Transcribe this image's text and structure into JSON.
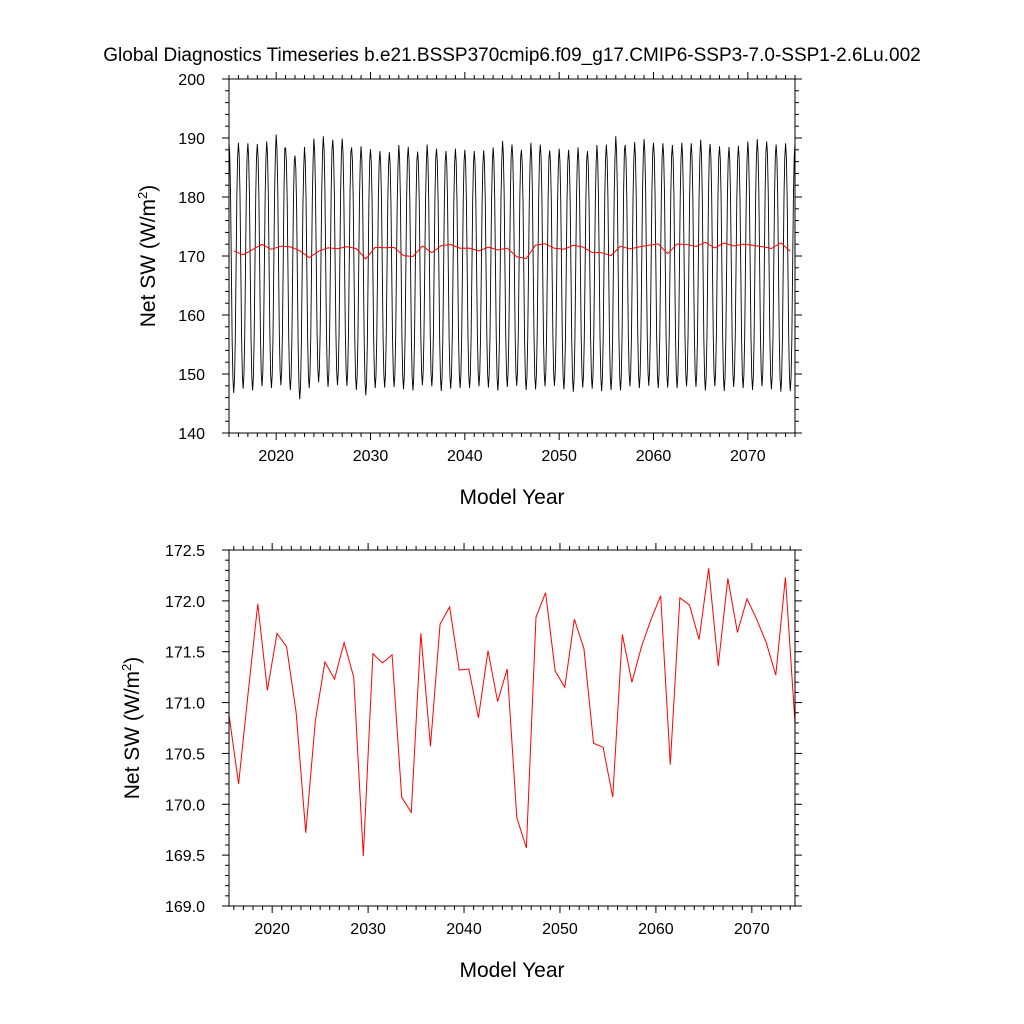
{
  "page": {
    "title": "Global Diagnostics Timeseries b.e21.BSSP370cmip6.f09_g17.CMIP6-SSP3-7.0-SSP1-2.6Lu.002"
  },
  "colors": {
    "monthly": "#000000",
    "annual": "#ff0000",
    "axis": "#000000"
  },
  "chart_data": [
    {
      "type": "line",
      "title": "",
      "xlabel": "Model Year",
      "ylabel": "Net SW (W/m",
      "ylabel_sup": "2",
      "ylabel_end": ")",
      "xlim": [
        2015,
        2075
      ],
      "ylim": [
        140,
        200
      ],
      "xticks": [
        2020,
        2030,
        2040,
        2050,
        2060,
        2070
      ],
      "xtick_labels": [
        "2020",
        "2030",
        "2040",
        "2050",
        "2060",
        "2070"
      ],
      "yticks": [
        140,
        150,
        160,
        170,
        180,
        190,
        200
      ],
      "ytick_labels": [
        "140",
        "150",
        "160",
        "170",
        "180",
        "190",
        "200"
      ],
      "series": [
        {
          "name": "monthly",
          "color": "#000000",
          "x_start": 2015.0,
          "x_step": 0.0833333,
          "seasonal_max": [
            189.2,
            189.2,
            189.1,
            189.0,
            189.4,
            190.6,
            188.3,
            187.0,
            188.5,
            189.9,
            190.3,
            189.7,
            189.9,
            188.4,
            188.6,
            188.1,
            187.8,
            187.6,
            188.8,
            188.5,
            187.7,
            188.9,
            188.2,
            187.8,
            188.2,
            188.0,
            187.8,
            187.9,
            188.4,
            189.5,
            188.9,
            188.0,
            189.2,
            188.9,
            187.9,
            188.2,
            188.0,
            188.4,
            187.8,
            188.8,
            188.9,
            190.3,
            188.8,
            189.3,
            189.8,
            189.2,
            189.1,
            188.8,
            189.2,
            189.1,
            189.7,
            189.0,
            188.6,
            188.5,
            188.7,
            189.4,
            189.8,
            189.4,
            188.9,
            189.1
          ],
          "seasonal_min": [
            146.8,
            147.5,
            147.2,
            147.9,
            147.6,
            148.1,
            147.3,
            145.7,
            147.6,
            148.6,
            147.8,
            148.1,
            148.0,
            147.3,
            146.4,
            147.6,
            147.7,
            147.8,
            147.4,
            147.2,
            148.1,
            147.9,
            147.1,
            147.5,
            147.6,
            147.6,
            147.9,
            147.7,
            147.2,
            147.8,
            148.0,
            147.3,
            147.4,
            147.9,
            148.0,
            147.4,
            147.0,
            147.7,
            147.5,
            147.1,
            147.3,
            147.2,
            147.9,
            147.6,
            148.0,
            147.6,
            147.7,
            147.6,
            147.9,
            147.8,
            147.2,
            147.9,
            147.1,
            147.8,
            147.6,
            147.3,
            147.9,
            147.4,
            147.0,
            147.1
          ]
        },
        {
          "name": "annual",
          "color": "#ff0000",
          "x": [
            2015.5,
            2016.5,
            2017.5,
            2018.5,
            2019.5,
            2020.5,
            2021.5,
            2022.5,
            2023.5,
            2024.5,
            2025.5,
            2026.5,
            2027.5,
            2028.5,
            2029.5,
            2030.5,
            2031.5,
            2032.5,
            2033.5,
            2034.5,
            2035.5,
            2036.5,
            2037.5,
            2038.5,
            2039.5,
            2040.5,
            2041.5,
            2042.5,
            2043.5,
            2044.5,
            2045.5,
            2046.5,
            2047.5,
            2048.5,
            2049.5,
            2050.5,
            2051.5,
            2052.5,
            2053.5,
            2054.5,
            2055.5,
            2056.5,
            2057.5,
            2058.5,
            2059.5,
            2060.5,
            2061.5,
            2062.5,
            2063.5,
            2064.5,
            2065.5,
            2066.5,
            2067.5,
            2068.5,
            2069.5,
            2070.5,
            2071.5,
            2072.5,
            2073.5,
            2074.5
          ],
          "values": [
            170.88,
            170.2,
            171.1,
            171.97,
            171.12,
            171.68,
            171.55,
            170.9,
            169.72,
            170.82,
            171.4,
            171.23,
            171.59,
            171.25,
            169.49,
            171.48,
            171.39,
            171.47,
            170.07,
            169.92,
            171.68,
            170.57,
            171.77,
            171.94,
            171.32,
            171.33,
            170.85,
            171.51,
            171.01,
            171.33,
            169.87,
            169.57,
            171.84,
            172.08,
            171.31,
            171.15,
            171.82,
            171.53,
            170.6,
            170.56,
            170.07,
            171.67,
            171.2,
            171.55,
            171.82,
            172.05,
            170.39,
            172.03,
            171.96,
            171.62,
            172.32,
            171.36,
            172.22,
            171.69,
            172.02,
            171.82,
            171.59,
            171.27,
            172.23,
            170.8
          ]
        }
      ]
    },
    {
      "type": "line",
      "title": "",
      "xlabel": "Model Year",
      "ylabel": "Net SW (W/m",
      "ylabel_sup": "2",
      "ylabel_end": ")",
      "xlim": [
        2015.5,
        2074.5
      ],
      "ylim": [
        169.0,
        172.5
      ],
      "xticks": [
        2020,
        2030,
        2040,
        2050,
        2060,
        2070
      ],
      "xtick_labels": [
        "2020",
        "2030",
        "2040",
        "2050",
        "2060",
        "2070"
      ],
      "yticks": [
        169.0,
        169.5,
        170.0,
        170.5,
        171.0,
        171.5,
        172.0,
        172.5
      ],
      "ytick_labels": [
        "169.0",
        "169.5",
        "170.0",
        "170.5",
        "171.0",
        "171.5",
        "172.0",
        "172.5"
      ],
      "series": [
        {
          "name": "annual",
          "color": "#ff0000",
          "x": [
            2015.5,
            2016.5,
            2017.5,
            2018.5,
            2019.5,
            2020.5,
            2021.5,
            2022.5,
            2023.5,
            2024.5,
            2025.5,
            2026.5,
            2027.5,
            2028.5,
            2029.5,
            2030.5,
            2031.5,
            2032.5,
            2033.5,
            2034.5,
            2035.5,
            2036.5,
            2037.5,
            2038.5,
            2039.5,
            2040.5,
            2041.5,
            2042.5,
            2043.5,
            2044.5,
            2045.5,
            2046.5,
            2047.5,
            2048.5,
            2049.5,
            2050.5,
            2051.5,
            2052.5,
            2053.5,
            2054.5,
            2055.5,
            2056.5,
            2057.5,
            2058.5,
            2059.5,
            2060.5,
            2061.5,
            2062.5,
            2063.5,
            2064.5,
            2065.5,
            2066.5,
            2067.5,
            2068.5,
            2069.5,
            2070.5,
            2071.5,
            2072.5,
            2073.5,
            2074.5
          ],
          "values": [
            170.88,
            170.2,
            171.1,
            171.97,
            171.12,
            171.68,
            171.55,
            170.9,
            169.72,
            170.82,
            171.4,
            171.23,
            171.59,
            171.25,
            169.49,
            171.48,
            171.39,
            171.47,
            170.07,
            169.92,
            171.68,
            170.57,
            171.77,
            171.94,
            171.32,
            171.33,
            170.85,
            171.51,
            171.01,
            171.33,
            169.87,
            169.57,
            171.84,
            172.08,
            171.31,
            171.15,
            171.82,
            171.53,
            170.6,
            170.56,
            170.07,
            171.67,
            171.2,
            171.55,
            171.82,
            172.05,
            170.39,
            172.03,
            171.96,
            171.62,
            172.32,
            171.36,
            172.22,
            171.69,
            172.02,
            171.82,
            171.59,
            171.27,
            172.23,
            170.8
          ]
        }
      ]
    }
  ]
}
